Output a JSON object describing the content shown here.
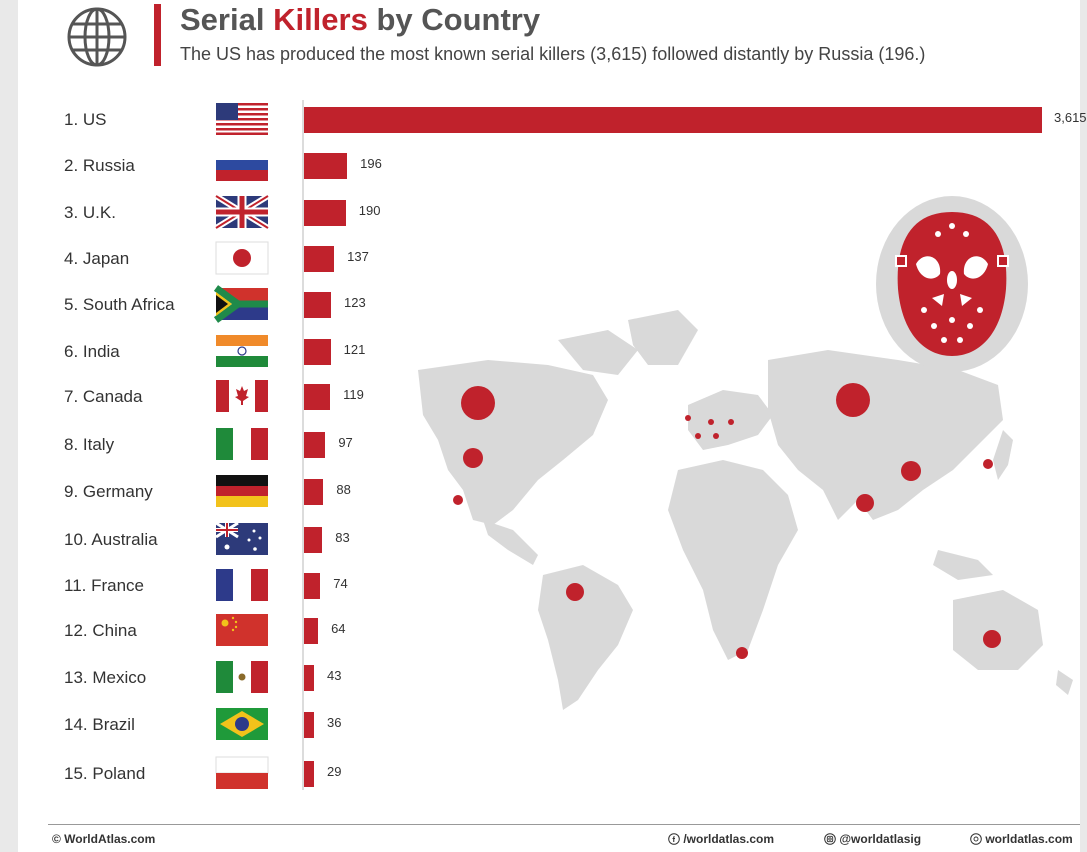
{
  "header": {
    "title_part1": "Serial ",
    "title_highlight": "Killers",
    "title_part2": " by Country",
    "subtitle": "The US has produced the most known serial killers (3,615) followed distantly by Russia (196.)",
    "accent_color": "#c0222c",
    "icon": "globe-icon"
  },
  "chart_data": {
    "type": "bar",
    "orientation": "horizontal",
    "categories": [
      "1. US",
      "2. Russia",
      "3. U.K.",
      "4. Japan",
      "5. South Africa",
      "6. India",
      "7. Canada",
      "8. Italy",
      "9. Germany",
      "10. Australia",
      "11. France",
      "12. China",
      "13. Mexico",
      "14. Brazil",
      "15. Poland"
    ],
    "values": [
      3615,
      196,
      190,
      137,
      123,
      121,
      119,
      97,
      88,
      83,
      74,
      64,
      43,
      36,
      29
    ],
    "value_labels": [
      "3,615",
      "196",
      "190",
      "137",
      "123",
      "121",
      "119",
      "97",
      "88",
      "83",
      "74",
      "64",
      "43",
      "36",
      "29"
    ],
    "bar_color": "#c0222c",
    "flags": [
      "us-flag-icon",
      "russia-flag-icon",
      "uk-flag-icon",
      "japan-flag-icon",
      "south-africa-flag-icon",
      "india-flag-icon",
      "canada-flag-icon",
      "italy-flag-icon",
      "germany-flag-icon",
      "australia-flag-icon",
      "france-flag-icon",
      "china-flag-icon",
      "mexico-flag-icon",
      "brazil-flag-icon",
      "poland-flag-icon"
    ]
  },
  "decor": {
    "map": "world-map-icon",
    "mask": "hockey-mask-icon",
    "map_color": "#d9d9d9"
  },
  "footer": {
    "brand": "© WorldAtlas.com",
    "facebook": "/worldatlas.com",
    "instagram": "@worldatlasig",
    "website": "worldatlas.com"
  }
}
